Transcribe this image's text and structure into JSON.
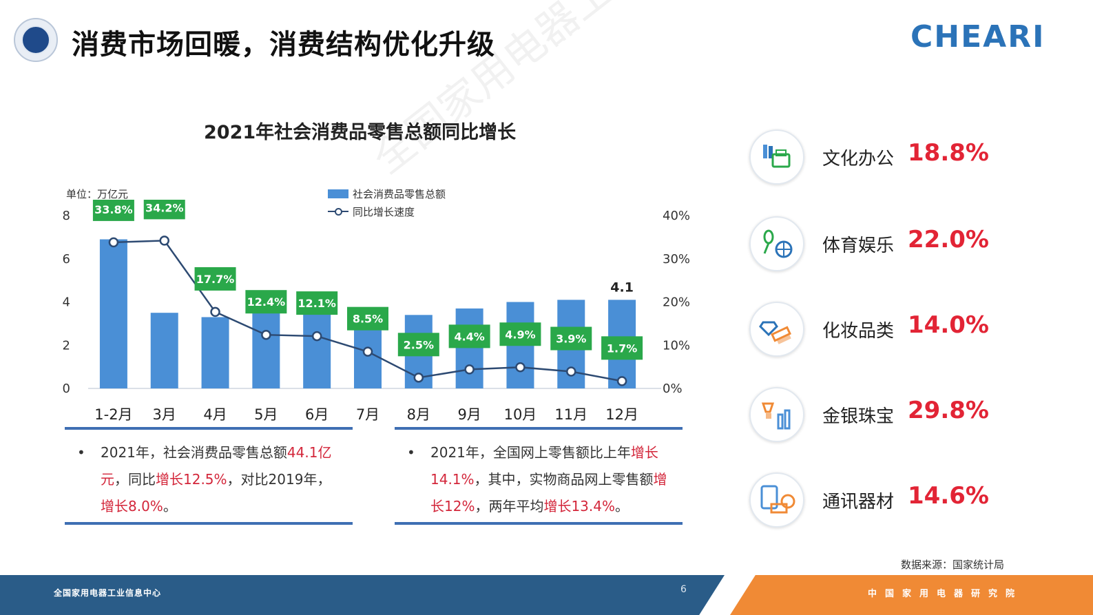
{
  "header": {
    "title": "消费市场回暖，消费结构优化升级",
    "brand": "CHEARI"
  },
  "chart_data": {
    "type": "bar",
    "title": "2021年社会消费品零售总额同比增长",
    "unit_label": "单位：万亿元",
    "categories": [
      "1-2月",
      "3月",
      "4月",
      "5月",
      "6月",
      "7月",
      "8月",
      "9月",
      "10月",
      "11月",
      "12月"
    ],
    "series": [
      {
        "name": "社会消费品零售总额",
        "type": "bar",
        "axis": "left",
        "color": "#4a8fd6",
        "values": [
          6.9,
          3.5,
          3.3,
          3.5,
          3.8,
          3.4,
          3.4,
          3.7,
          4.0,
          4.1,
          4.1
        ]
      },
      {
        "name": "同比增长速度",
        "type": "line",
        "axis": "right",
        "color": "#2d4a72",
        "values": [
          33.8,
          34.2,
          17.7,
          12.4,
          12.1,
          8.5,
          2.5,
          4.4,
          4.9,
          3.9,
          1.7
        ],
        "labels": [
          "33.8%",
          "34.2%",
          "17.7%",
          "12.4%",
          "12.1%",
          "8.5%",
          "2.5%",
          "4.4%",
          "4.9%",
          "3.9%",
          "1.7%"
        ]
      }
    ],
    "bar_data_label": {
      "category": "12月",
      "text": "4.1"
    },
    "y_left": {
      "ticks": [
        "0",
        "2",
        "4",
        "6",
        "8"
      ],
      "ylim": [
        0,
        8
      ]
    },
    "y_right": {
      "ticks": [
        "0%",
        "10%",
        "20%",
        "30%",
        "40%"
      ],
      "ylim": [
        0,
        40
      ]
    },
    "label_color": "#2aa84a",
    "legend_position": "top-center",
    "grid": false
  },
  "panels": [
    {
      "segments": [
        {
          "text": "2021年，社会消费品零售总额",
          "hl": false
        },
        {
          "text": "44.1亿元",
          "hl": true
        },
        {
          "text": "，同比",
          "hl": false
        },
        {
          "text": "增长12.5%",
          "hl": true
        },
        {
          "text": "，对比2019年，",
          "hl": false
        },
        {
          "text": "增长8.0%",
          "hl": true
        },
        {
          "text": "。",
          "hl": false
        }
      ]
    },
    {
      "segments": [
        {
          "text": "2021年，全国网上零售额比上年",
          "hl": false
        },
        {
          "text": "增长14.1%",
          "hl": true
        },
        {
          "text": "，其中，实物商品网上零售额",
          "hl": false
        },
        {
          "text": "增长12%",
          "hl": true
        },
        {
          "text": "，两年平均",
          "hl": false
        },
        {
          "text": "增长13.4%",
          "hl": true
        },
        {
          "text": "。",
          "hl": false
        }
      ]
    }
  ],
  "categories_growth": [
    {
      "label": "文化办公",
      "pct": "18.8%",
      "icon": "office-supplies-icon"
    },
    {
      "label": "体育娱乐",
      "pct": "22.0%",
      "icon": "sports-entertainment-icon"
    },
    {
      "label": "化妆品类",
      "pct": "14.0%",
      "icon": "cosmetics-icon"
    },
    {
      "label": "金银珠宝",
      "pct": "29.8%",
      "icon": "jewelry-icon"
    },
    {
      "label": "通讯器材",
      "pct": "14.6%",
      "icon": "communication-devices-icon"
    }
  ],
  "source": "数据来源：国家统计局",
  "footer": {
    "left_text": "全国家用电器工业信息中心",
    "page": "6",
    "right_text": "中国家用电器研究院"
  },
  "colors": {
    "accent_red": "#e22435",
    "bar_blue": "#4a8fd6",
    "line_navy": "#2d4a72",
    "label_green": "#2aa84a",
    "footer_blue": "#2a5c88",
    "footer_orange": "#f08a35"
  }
}
